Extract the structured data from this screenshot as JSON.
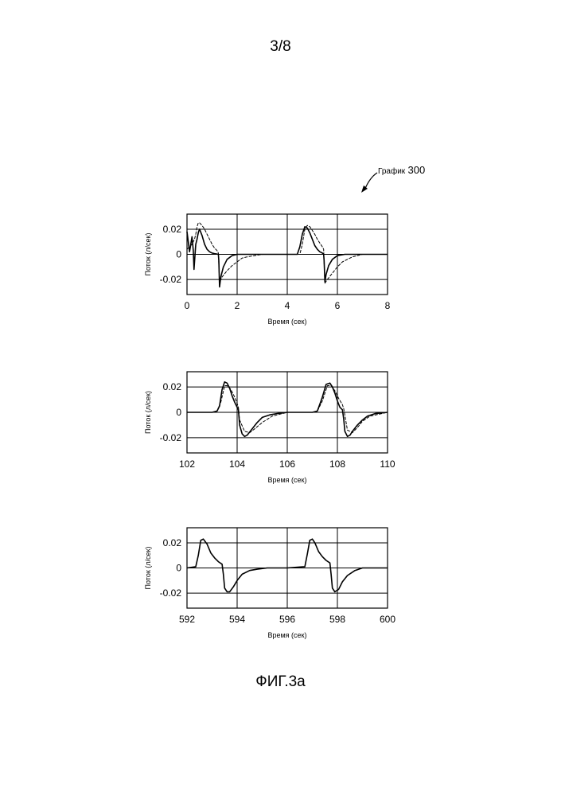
{
  "page": {
    "number": "3/8",
    "caption": "ФИГ.3а"
  },
  "callout": {
    "label": "График",
    "number": "300"
  },
  "chart_data": [
    {
      "type": "line",
      "ylabel": "Поток (л/сек)",
      "xlabel": "Время (сек)",
      "xlim": [
        0,
        8
      ],
      "ylim": [
        -0.032,
        0.032
      ],
      "xticks": [
        0,
        2,
        4,
        6,
        8
      ],
      "xtick_labels": [
        "0",
        "2",
        "4",
        "6",
        "8"
      ],
      "yticks": [
        0.02,
        0,
        -0.02
      ],
      "ytick_labels": [
        "0.02",
        "0",
        "-0.02"
      ],
      "grid": true,
      "series": [
        {
          "style": "solid",
          "x": [
            0,
            0.05,
            0.1,
            0.2,
            0.22,
            0.25,
            0.28,
            0.35,
            0.4,
            0.43,
            0.46,
            0.5,
            0.6,
            0.7,
            0.8,
            0.9,
            1.0,
            1.1,
            1.2,
            1.25,
            1.27,
            1.3,
            1.35,
            1.45,
            1.6,
            1.8,
            2.0,
            2.2,
            2.5,
            3.0,
            3.5,
            4.0,
            4.4,
            4.5,
            4.6,
            4.7,
            4.8,
            4.9,
            5.0,
            5.1,
            5.2,
            5.3,
            5.4,
            5.45,
            5.47,
            5.5,
            5.55,
            5.65,
            5.8,
            6.0,
            6.3,
            6.6,
            7.0,
            8.0
          ],
          "y": [
            0.018,
            0.01,
            0.002,
            0.014,
            0.01,
            0.003,
            -0.012,
            0.008,
            0.012,
            0.015,
            0.018,
            0.02,
            0.015,
            0.008,
            0.004,
            0.002,
            0.001,
            0.0005,
            0.0002,
            0.0001,
            -0.005,
            -0.026,
            -0.018,
            -0.01,
            -0.004,
            -0.001,
            0,
            0,
            0,
            0,
            0,
            0,
            0,
            0.006,
            0.016,
            0.022,
            0.021,
            0.017,
            0.012,
            0.007,
            0.004,
            0.002,
            0.001,
            0,
            -0.005,
            -0.022,
            -0.016,
            -0.009,
            -0.004,
            -0.001,
            0,
            0,
            0,
            0
          ]
        },
        {
          "style": "dashed",
          "x": [
            0,
            0.1,
            0.2,
            0.3,
            0.35,
            0.4,
            0.45,
            0.5,
            0.6,
            0.7,
            0.8,
            0.9,
            1.0,
            1.1,
            1.2,
            1.25,
            1.3,
            1.4,
            1.6,
            1.8,
            2.0,
            2.2,
            2.4,
            2.7,
            3.0,
            4.0,
            4.5,
            4.6,
            4.7,
            4.8,
            4.9,
            5.0,
            5.1,
            5.2,
            5.3,
            5.4,
            5.45,
            5.5,
            5.6,
            5.8,
            6.0,
            6.2,
            6.4,
            6.6,
            7.0,
            8.0
          ],
          "y": [
            0.004,
            0.006,
            0.008,
            0.012,
            0.016,
            0.022,
            0.025,
            0.025,
            0.023,
            0.02,
            0.016,
            0.012,
            0.008,
            0.005,
            0.003,
            0.001,
            -0.022,
            -0.018,
            -0.013,
            -0.009,
            -0.006,
            -0.003,
            -0.002,
            -0.001,
            0,
            0,
            0,
            0.008,
            0.02,
            0.023,
            0.022,
            0.019,
            0.016,
            0.012,
            0.009,
            0.006,
            0.004,
            -0.023,
            -0.02,
            -0.015,
            -0.01,
            -0.006,
            -0.004,
            -0.002,
            0,
            0
          ]
        }
      ]
    },
    {
      "type": "line",
      "ylabel": "Поток (л/сек)",
      "xlabel": "Время (сек)",
      "xlim": [
        102,
        110
      ],
      "ylim": [
        -0.032,
        0.032
      ],
      "xticks": [
        102,
        104,
        106,
        108,
        110
      ],
      "xtick_labels": [
        "102",
        "104",
        "106",
        "108",
        "110"
      ],
      "yticks": [
        0.02,
        0,
        -0.02
      ],
      "ytick_labels": [
        "0.02",
        "0",
        "-0.02"
      ],
      "grid": true,
      "series": [
        {
          "style": "solid",
          "x": [
            102,
            103,
            103.2,
            103.3,
            103.4,
            103.5,
            103.6,
            103.7,
            103.8,
            103.9,
            104.0,
            104.05,
            104.1,
            104.2,
            104.3,
            104.4,
            104.6,
            104.8,
            105.0,
            105.3,
            105.6,
            106,
            107,
            107.2,
            107.4,
            107.55,
            107.7,
            107.8,
            107.9,
            108.0,
            108.1,
            108.2,
            108.25,
            108.3,
            108.4,
            108.5,
            108.6,
            108.8,
            109.0,
            109.2,
            109.5,
            110
          ],
          "y": [
            0,
            0,
            0.001,
            0.005,
            0.018,
            0.024,
            0.023,
            0.019,
            0.013,
            0.008,
            0.004,
            0.002,
            -0.01,
            -0.017,
            -0.019,
            -0.018,
            -0.013,
            -0.008,
            -0.004,
            -0.002,
            -0.001,
            0,
            0,
            0.001,
            0.012,
            0.022,
            0.023,
            0.02,
            0.015,
            0.009,
            0.004,
            0.002,
            -0.005,
            -0.015,
            -0.019,
            -0.018,
            -0.015,
            -0.01,
            -0.006,
            -0.003,
            -0.001,
            0
          ]
        },
        {
          "style": "dashed",
          "x": [
            102,
            103,
            103.2,
            103.35,
            103.5,
            103.6,
            103.75,
            103.9,
            104.0,
            104.05,
            104.1,
            104.3,
            104.5,
            104.7,
            105.0,
            105.4,
            106,
            107,
            107.2,
            107.4,
            107.6,
            107.75,
            107.9,
            108.05,
            108.2,
            108.25,
            108.4,
            108.6,
            108.8,
            109.0,
            109.3,
            110
          ],
          "y": [
            0,
            0,
            0.001,
            0.008,
            0.021,
            0.021,
            0.018,
            0.012,
            0.007,
            0.004,
            -0.006,
            -0.015,
            -0.016,
            -0.013,
            -0.008,
            -0.003,
            0,
            0,
            0.001,
            0.009,
            0.021,
            0.021,
            0.017,
            0.011,
            0.006,
            0.003,
            -0.014,
            -0.016,
            -0.012,
            -0.007,
            -0.003,
            0
          ]
        }
      ]
    },
    {
      "type": "line",
      "ylabel": "Поток (л/сек)",
      "xlabel": "Время (сек)",
      "xlim": [
        592,
        600
      ],
      "ylim": [
        -0.032,
        0.032
      ],
      "xticks": [
        592,
        594,
        596,
        598,
        600
      ],
      "xtick_labels": [
        "592",
        "594",
        "596",
        "598",
        "600"
      ],
      "yticks": [
        0.02,
        0,
        -0.02
      ],
      "ytick_labels": [
        "0.02",
        "0",
        "-0.02"
      ],
      "grid": true,
      "series": [
        {
          "style": "solid",
          "x": [
            592,
            592.35,
            592.45,
            592.55,
            592.65,
            592.8,
            592.95,
            593.1,
            593.25,
            593.4,
            593.45,
            593.5,
            593.6,
            593.7,
            593.85,
            594.0,
            594.2,
            594.5,
            594.8,
            595.2,
            596,
            596.7,
            596.8,
            596.9,
            597.0,
            597.1,
            597.25,
            597.4,
            597.55,
            597.7,
            597.75,
            597.8,
            597.9,
            598.05,
            598.2,
            598.4,
            598.7,
            599,
            600
          ],
          "y": [
            0,
            0.001,
            0.01,
            0.022,
            0.023,
            0.019,
            0.012,
            0.008,
            0.005,
            0.003,
            -0.005,
            -0.016,
            -0.019,
            -0.019,
            -0.015,
            -0.01,
            -0.005,
            -0.002,
            -0.001,
            0,
            0,
            0.001,
            0.011,
            0.022,
            0.023,
            0.02,
            0.013,
            0.009,
            0.006,
            0.004,
            -0.005,
            -0.016,
            -0.019,
            -0.017,
            -0.011,
            -0.006,
            -0.002,
            0,
            0
          ]
        }
      ]
    }
  ]
}
